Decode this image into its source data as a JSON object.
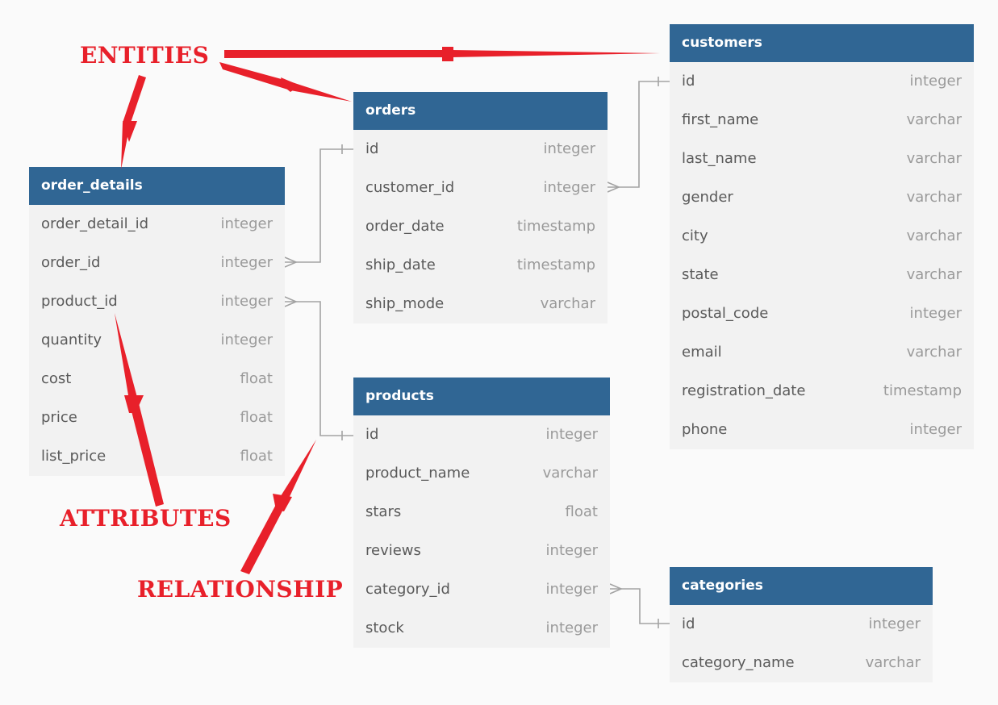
{
  "entities": {
    "customers": {
      "name": "customers",
      "attributes": [
        {
          "name": "id",
          "type": "integer"
        },
        {
          "name": "first_name",
          "type": "varchar"
        },
        {
          "name": "last_name",
          "type": "varchar"
        },
        {
          "name": "gender",
          "type": "varchar"
        },
        {
          "name": "city",
          "type": "varchar"
        },
        {
          "name": "state",
          "type": "varchar"
        },
        {
          "name": "postal_code",
          "type": "integer"
        },
        {
          "name": "email",
          "type": "varchar"
        },
        {
          "name": "registration_date",
          "type": "timestamp"
        },
        {
          "name": "phone",
          "type": "integer"
        }
      ]
    },
    "orders": {
      "name": "orders",
      "attributes": [
        {
          "name": "id",
          "type": "integer"
        },
        {
          "name": "customer_id",
          "type": "integer"
        },
        {
          "name": "order_date",
          "type": "timestamp"
        },
        {
          "name": "ship_date",
          "type": "timestamp"
        },
        {
          "name": "ship_mode",
          "type": "varchar"
        }
      ]
    },
    "order_details": {
      "name": "order_details",
      "attributes": [
        {
          "name": "order_detail_id",
          "type": "integer"
        },
        {
          "name": "order_id",
          "type": "integer"
        },
        {
          "name": "product_id",
          "type": "integer"
        },
        {
          "name": "quantity",
          "type": "integer"
        },
        {
          "name": "cost",
          "type": "float"
        },
        {
          "name": "price",
          "type": "float"
        },
        {
          "name": "list_price",
          "type": "float"
        }
      ]
    },
    "products": {
      "name": "products",
      "attributes": [
        {
          "name": "id",
          "type": "integer"
        },
        {
          "name": "product_name",
          "type": "varchar"
        },
        {
          "name": "stars",
          "type": "float"
        },
        {
          "name": "reviews",
          "type": "integer"
        },
        {
          "name": "category_id",
          "type": "integer"
        },
        {
          "name": "stock",
          "type": "integer"
        }
      ]
    },
    "categories": {
      "name": "categories",
      "attributes": [
        {
          "name": "id",
          "type": "integer"
        },
        {
          "name": "category_name",
          "type": "varchar"
        }
      ]
    }
  },
  "annotations": {
    "entities_label": "ENTITIES",
    "attributes_label": "ATTRIBUTES",
    "relationship_label": "RELATIONSHIP"
  },
  "colors": {
    "header": "#306694",
    "annotation": "#e8202a",
    "connector": "#9a9a9a"
  }
}
